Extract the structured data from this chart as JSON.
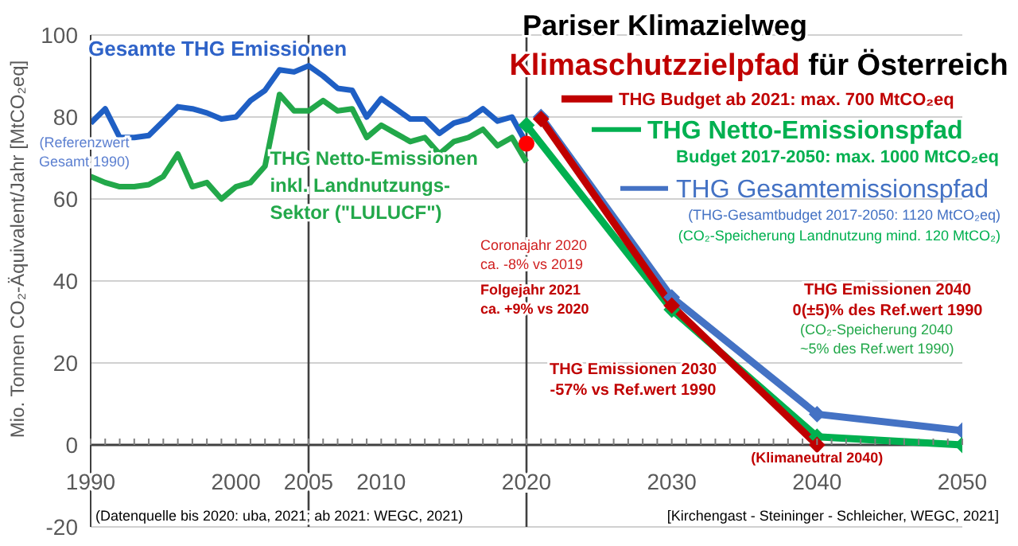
{
  "chart_data": {
    "type": "line",
    "title": "Pariser Klimazielweg",
    "subtitle": "Klimaschutzzielpfad für Österreich",
    "ylabel": "Mio. Tonnen CO₂-Äquivalent/Jahr [MtCO₂eq]",
    "xlim": [
      1990,
      2050
    ],
    "xticks": [
      1990,
      2000,
      2005,
      2010,
      2020,
      2030,
      2040,
      2050
    ],
    "ylim": [
      -20,
      100
    ],
    "yticks": [
      -20,
      0,
      20,
      40,
      60,
      80,
      100
    ],
    "grid": "y",
    "legend": "top right",
    "line_style": "solid",
    "series": [
      {
        "name": "THG Budget ab 2021: max. 700 MtCO₂eq",
        "color": "#c00000",
        "x": [
          2021,
          2030,
          2040
        ],
        "values": [
          79.5,
          34,
          0
        ],
        "marker": "diamond"
      },
      {
        "name": "THG Netto-Emissionspfad",
        "color": "#00b050",
        "x": [
          2020,
          2030,
          2040,
          2050
        ],
        "values": [
          78,
          33,
          2,
          0
        ],
        "marker": "diamond"
      },
      {
        "name": "THG Gesamtemissionspfad",
        "color": "#4472c4",
        "x": [
          2021,
          2030,
          2040,
          2050
        ],
        "values": [
          80,
          36,
          7.5,
          3.5
        ],
        "marker": "diamond"
      },
      {
        "color": "#1f5fc4",
        "x": [
          1990,
          1991,
          1992,
          1993,
          1994,
          1995,
          1996,
          1997,
          1998,
          1999,
          2000,
          2001,
          2002,
          2003,
          2004,
          2005,
          2006,
          2007,
          2008,
          2009,
          2010,
          2011,
          2012,
          2013,
          2014,
          2015,
          2016,
          2017,
          2018,
          2019,
          2020
        ],
        "values": [
          78.5,
          82,
          75,
          75,
          75.5,
          79,
          82.5,
          82,
          81,
          79.5,
          80,
          84,
          86.5,
          91.5,
          91,
          92.5,
          90,
          87,
          86.5,
          80,
          84.5,
          82,
          79.5,
          79.5,
          76,
          78.5,
          79.5,
          82,
          79,
          80,
          73.5
        ],
        "marker": "none"
      },
      {
        "color": "#22a84a",
        "x": [
          1990,
          1991,
          1992,
          1993,
          1994,
          1995,
          1996,
          1997,
          1998,
          1999,
          2000,
          2001,
          2002,
          2003,
          2004,
          2005,
          2006,
          2007,
          2008,
          2009,
          2010,
          2011,
          2012,
          2013,
          2014,
          2015,
          2016,
          2017,
          2018,
          2019,
          2020
        ],
        "values": [
          65.5,
          64,
          63,
          63,
          63.5,
          65.5,
          71,
          63,
          64,
          60,
          63,
          64,
          68,
          85.5,
          81.5,
          81.5,
          84,
          81.5,
          82,
          75,
          78,
          76,
          74,
          75,
          71,
          74,
          75,
          77,
          73,
          75,
          69
        ],
        "marker": "none"
      },
      {
        "type": "scatter",
        "color": "#ff0000",
        "x": [
          2020
        ],
        "values": [
          73.5
        ],
        "marker": "circle"
      }
    ],
    "ref_lines": [
      {
        "axis": "x",
        "value": 2005,
        "color": "#404040"
      },
      {
        "axis": "x",
        "value": 2020,
        "color": "#404040"
      }
    ],
    "annotations": [
      {
        "text": "Gesamte THG Emissionen",
        "x": 1996,
        "y": 82.5
      },
      {
        "text": "(Referenzwert\nGesamt 1990)",
        "x": 1990,
        "y": 78.5
      },
      {
        "text": "THG Netto-Emissionen\ninkl. Landnutzungs-\nSektor (\"LULUCF\")",
        "x": 2003,
        "y": 85.5
      },
      "Coronajahr 2020\nca. -8% vs 2019",
      "Folgejahr 2021\nca. +9% vs 2020",
      "THG Emissionen 2030\n-57% vs Ref.wert 1990",
      "THG Emissionen 2040\n0(±5)% des Ref.wert 1990",
      "(CO₂-Speicherung 2040\n~5% des Ref.wert 1990)",
      {
        "text": "(Klimaneutral 2040)",
        "x": 2040,
        "y": 0
      },
      "(Datenquelle bis 2020: uba, 2021; ab 2021: WEGC, 2021)",
      "[Kirchengast - Steininger - Schleicher, WEGC, 2021]",
      "Budget 2017-2050: max. 1000 MtCO₂eq",
      "(THG-Gesamtbudget 2017-2050: 1120 MtCO₂eq)",
      "(CO₂-Speicherung Landnutzung mind. 120 MtCO₂)"
    ]
  }
}
